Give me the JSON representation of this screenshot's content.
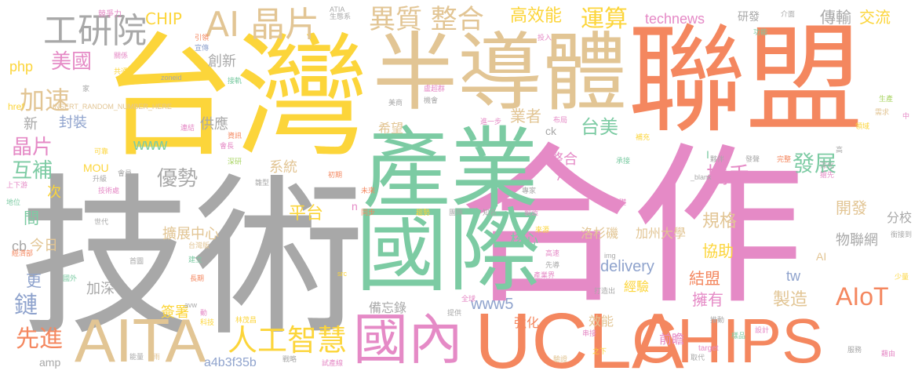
{
  "colors": {
    "orange": "#f4875f",
    "pink": "#e58ac6",
    "gray": "#a8a8a8",
    "yellow": "#fcd53a",
    "tan": "#e2c594",
    "green": "#7ccba3",
    "blue": "#8fa3cd",
    "lime": "#a9d463",
    "background": "#ffffff"
  },
  "words": [
    {
      "text": "聯盟",
      "color": "orange"
    },
    {
      "text": "合作",
      "color": "pink"
    },
    {
      "text": "技術",
      "color": "gray"
    },
    {
      "text": "台灣",
      "color": "yellow"
    },
    {
      "text": "半導體",
      "color": "tan"
    },
    {
      "text": "產業",
      "color": "green"
    },
    {
      "text": "國際",
      "color": "green"
    },
    {
      "text": "UCLA",
      "color": "orange"
    },
    {
      "text": "CHIPS",
      "color": "orange"
    },
    {
      "text": "AITA",
      "color": "tan"
    },
    {
      "text": "國內",
      "color": "pink"
    },
    {
      "text": "人工智慧",
      "color": "yellow"
    },
    {
      "text": "工研院",
      "color": "gray"
    },
    {
      "text": "AI 晶片",
      "color": "tan"
    },
    {
      "text": "異質 整合",
      "color": "tan"
    },
    {
      "text": "高效能",
      "color": "yellow"
    },
    {
      "text": "運算",
      "color": "yellow"
    },
    {
      "text": "CHIP",
      "color": "yellow"
    },
    {
      "text": "美國",
      "color": "pink"
    },
    {
      "text": "加速",
      "color": "tan"
    },
    {
      "text": "晶片",
      "color": "pink"
    },
    {
      "text": "互補",
      "color": "green"
    },
    {
      "text": "先進",
      "color": "orange"
    },
    {
      "text": "鏈",
      "color": "blue"
    },
    {
      "text": "更",
      "color": "blue"
    },
    {
      "text": "間",
      "color": "green"
    },
    {
      "text": "次",
      "color": "yellow"
    },
    {
      "text": "新",
      "color": "gray"
    },
    {
      "text": "封裝",
      "color": "blue"
    },
    {
      "text": "優勢",
      "color": "gray"
    },
    {
      "text": "系統",
      "color": "tan"
    },
    {
      "text": "www",
      "color": "green"
    },
    {
      "text": "業者",
      "color": "tan"
    },
    {
      "text": "希望",
      "color": "tan"
    },
    {
      "text": "台美",
      "color": "green"
    },
    {
      "text": "發展",
      "color": "green"
    },
    {
      "text": "攜手",
      "color": "pink"
    },
    {
      "text": "technews",
      "color": "pink"
    },
    {
      "text": "研發",
      "color": "gray"
    },
    {
      "text": "傳輸",
      "color": "gray"
    },
    {
      "text": "交流",
      "color": "yellow"
    },
    {
      "text": "php",
      "color": "yellow"
    },
    {
      "text": "創新",
      "color": "gray"
    },
    {
      "text": "平台",
      "color": "yellow"
    },
    {
      "text": "開發",
      "color": "tan"
    },
    {
      "text": "分校",
      "color": "gray"
    },
    {
      "text": "規格",
      "color": "tan"
    },
    {
      "text": "AIoT",
      "color": "orange"
    },
    {
      "text": "協助",
      "color": "yellow"
    },
    {
      "text": "物聯網",
      "color": "gray"
    },
    {
      "text": "加州大學",
      "color": "tan"
    },
    {
      "text": "洛杉磯",
      "color": "tan"
    },
    {
      "text": "擴展中心",
      "color": "tan"
    },
    {
      "text": "delivery",
      "color": "blue"
    },
    {
      "text": "結盟",
      "color": "orange"
    },
    {
      "text": "擁有",
      "color": "pink"
    },
    {
      "text": "製造",
      "color": "tan"
    },
    {
      "text": "tw",
      "color": "blue"
    },
    {
      "text": "www5",
      "color": "blue"
    },
    {
      "text": "強化",
      "color": "orange"
    },
    {
      "text": "經驗",
      "color": "yellow"
    },
    {
      "text": "效能",
      "color": "tan"
    },
    {
      "text": "前瞻",
      "color": "pink"
    },
    {
      "text": "a4b3f35b",
      "color": "blue"
    },
    {
      "text": "簽署",
      "color": "yellow"
    },
    {
      "text": "加深",
      "color": "gray"
    },
    {
      "text": "amp",
      "color": "gray"
    },
    {
      "text": "cb",
      "color": "gray"
    },
    {
      "text": "今日",
      "color": "tan"
    },
    {
      "text": "MOU",
      "color": "yellow"
    },
    {
      "text": "供應",
      "color": "gray"
    },
    {
      "text": "核心",
      "color": "green"
    },
    {
      "text": "備忘錄",
      "color": "gray"
    },
    {
      "text": "整合",
      "color": "pink"
    },
    {
      "text": "A",
      "color": "pink"
    },
    {
      "text": "ck",
      "color": "gray"
    },
    {
      "text": "n",
      "color": "pink"
    },
    {
      "text": "I",
      "color": "green"
    },
    {
      "text": "AI",
      "color": "tan"
    },
    {
      "text": "href",
      "color": "yellow"
    },
    {
      "text": "INSERT_RANDOM_NUMBER_HERE",
      "color": "tan"
    },
    {
      "text": "zoneid",
      "color": "gray"
    },
    {
      "text": "_blank",
      "color": "gray"
    },
    {
      "text": "img",
      "color": "gray"
    },
    {
      "text": "src",
      "color": "yellow"
    },
    {
      "text": "target",
      "color": "pink"
    },
    {
      "text": "avw",
      "color": "gray"
    },
    {
      "text": "競爭力",
      "color": "pink"
    },
    {
      "text": "ATIA",
      "color": "gray"
    },
    {
      "text": "生態系",
      "color": "gray"
    },
    {
      "text": "投入",
      "color": "pink"
    },
    {
      "text": "介面",
      "color": "gray"
    },
    {
      "text": "功能",
      "color": "green"
    },
    {
      "text": "引領",
      "color": "orange"
    },
    {
      "text": "宣傳",
      "color": "blue"
    },
    {
      "text": "關係",
      "color": "pink"
    },
    {
      "text": "共通",
      "color": "yellow"
    },
    {
      "text": "家",
      "color": "gray"
    },
    {
      "text": "接軌",
      "color": "green"
    },
    {
      "text": "盧超群",
      "color": "pink"
    },
    {
      "text": "美商",
      "color": "gray"
    },
    {
      "text": "機會",
      "color": "gray"
    },
    {
      "text": "連結",
      "color": "pink"
    },
    {
      "text": "資訊",
      "color": "orange"
    },
    {
      "text": "會長",
      "color": "pink"
    },
    {
      "text": "深研",
      "color": "lime"
    },
    {
      "text": "可靠",
      "color": "yellow"
    },
    {
      "text": "會員",
      "color": "gray"
    },
    {
      "text": "升級",
      "color": "gray"
    },
    {
      "text": "上下游",
      "color": "pink"
    },
    {
      "text": "初期",
      "color": "orange"
    },
    {
      "text": "雛型",
      "color": "gray"
    },
    {
      "text": "地位",
      "color": "green"
    },
    {
      "text": "技術處",
      "color": "pink"
    },
    {
      "text": "世代",
      "color": "gray"
    },
    {
      "text": "經濟部",
      "color": "orange"
    },
    {
      "text": "台灣版",
      "color": "tan"
    },
    {
      "text": "首圖",
      "color": "gray"
    },
    {
      "text": "建立",
      "color": "green"
    },
    {
      "text": "國外",
      "color": "green"
    },
    {
      "text": "長期",
      "color": "orange"
    },
    {
      "text": "動",
      "color": "pink"
    },
    {
      "text": "科技",
      "color": "yellow"
    },
    {
      "text": "林茂昌",
      "color": "yellow"
    },
    {
      "text": "戰略",
      "color": "gray"
    },
    {
      "text": "試產線",
      "color": "pink"
    },
    {
      "text": "雨",
      "color": "tan"
    },
    {
      "text": "能量",
      "color": "gray"
    },
    {
      "text": "提供",
      "color": "gray"
    },
    {
      "text": "全球",
      "color": "pink"
    },
    {
      "text": "打造出",
      "color": "gray"
    },
    {
      "text": "串接",
      "color": "pink"
    },
    {
      "text": "之下",
      "color": "yellow"
    },
    {
      "text": "驗證",
      "color": "tan"
    },
    {
      "text": "推動",
      "color": "gray"
    },
    {
      "text": "樣品",
      "color": "green"
    },
    {
      "text": "設計",
      "color": "pink"
    },
    {
      "text": "取代",
      "color": "gray"
    },
    {
      "text": "服務",
      "color": "gray"
    },
    {
      "text": "藉由",
      "color": "pink"
    },
    {
      "text": "少量",
      "color": "yellow"
    },
    {
      "text": "銜接到",
      "color": "gray"
    },
    {
      "text": "進一步",
      "color": "pink"
    },
    {
      "text": "布局",
      "color": "pink"
    },
    {
      "text": "補充",
      "color": "yellow"
    },
    {
      "text": "承接",
      "color": "green"
    },
    {
      "text": "夥伴",
      "color": "gray"
    },
    {
      "text": "發聲",
      "color": "gray"
    },
    {
      "text": "完整",
      "color": "orange"
    },
    {
      "text": "深化",
      "color": "gray"
    },
    {
      "text": "搶先",
      "color": "pink"
    },
    {
      "text": "專家",
      "color": "gray"
    },
    {
      "text": "基礎",
      "color": "pink"
    },
    {
      "text": "同步",
      "color": "orange"
    },
    {
      "text": "趨勢",
      "color": "yellow"
    },
    {
      "text": "團隊",
      "color": "gray"
    },
    {
      "text": "知名",
      "color": "gray"
    },
    {
      "text": "製造",
      "color": "pink"
    },
    {
      "text": "未來",
      "color": "orange"
    },
    {
      "text": "來源",
      "color": "yellow"
    },
    {
      "text": "高速",
      "color": "pink"
    },
    {
      "text": "先導",
      "color": "gray"
    },
    {
      "text": "產業界",
      "color": "pink"
    },
    {
      "text": "生產",
      "color": "lime"
    },
    {
      "text": "需求",
      "color": "tan"
    },
    {
      "text": "領域",
      "color": "yellow"
    },
    {
      "text": "中",
      "color": "pink"
    },
    {
      "text": "高",
      "color": "gray"
    }
  ]
}
